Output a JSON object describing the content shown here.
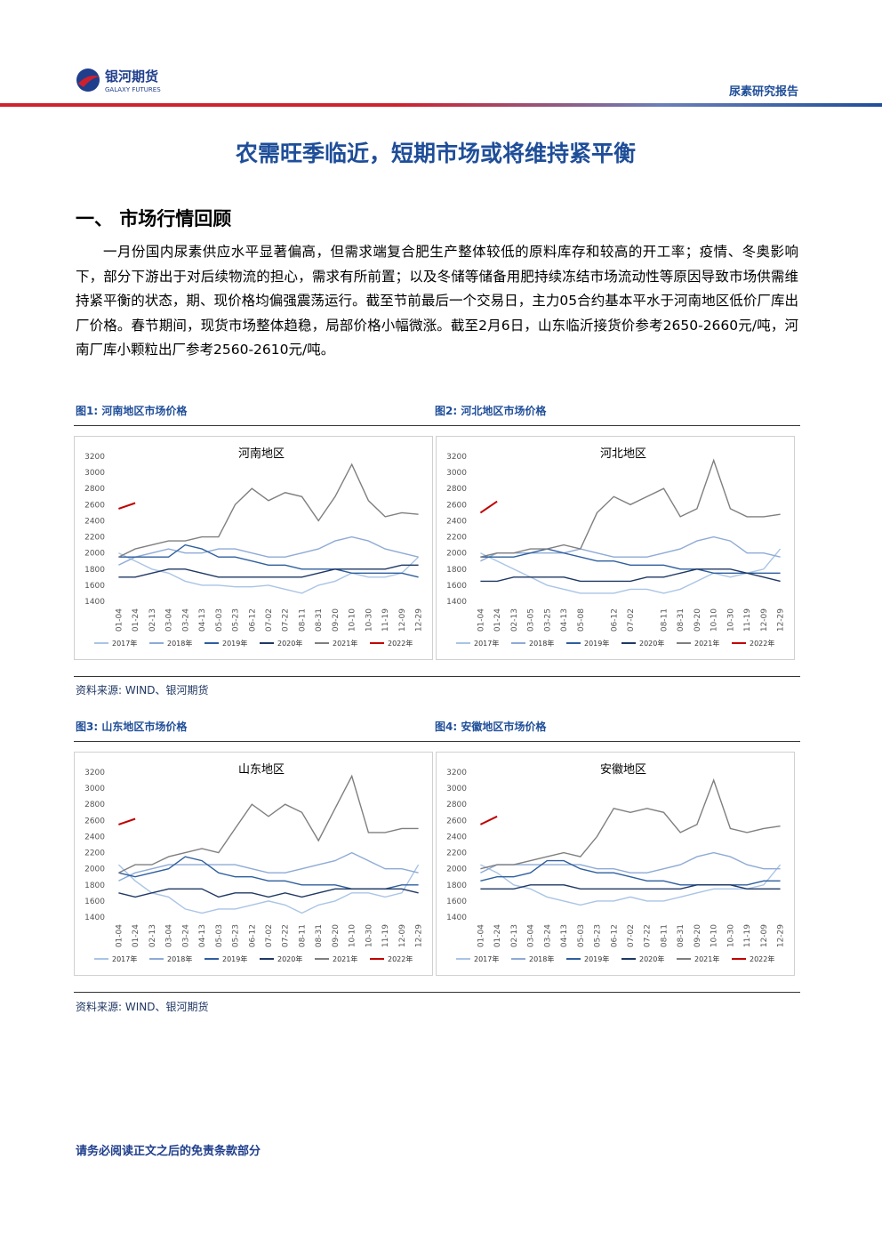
{
  "header": {
    "logo_cn": "银河期货",
    "logo_en": "GALAXY FUTURES",
    "report_type": "尿素研究报告"
  },
  "title": "农需旺季临近，短期市场或将维持紧平衡",
  "section": "一、 市场行情回顾",
  "paragraph": "一月份国内尿素供应水平显著偏高，但需求端复合肥生产整体较低的原料库存和较高的开工率；疫情、冬奥影响下，部分下游出于对后续物流的担心，需求有所前置；以及冬储等储备用肥持续冻结市场流动性等原因导致市场供需维持紧平衡的状态，期、现价格均偏强震荡运行。截至节前最后一个交易日，主力05合约基本平水于河南地区低价厂库出厂价格。春节期间，现货市场整体趋稳，局部价格小幅微涨。截至2月6日，山东临沂接货价参考2650-2660元/吨，河南厂库小颗粒出厂参考2560-2610元/吨。",
  "figure_captions": [
    "图1: 河南地区市场价格",
    "图2: 河北地区市场价格",
    "图3: 山东地区市场价格",
    "图4: 安徽地区市场价格"
  ],
  "sources": [
    "资料来源: WIND、银河期货",
    "资料来源: WIND、银河期货"
  ],
  "footer": "请务必阅读正文之后的免责条款部分",
  "chart_data": [
    {
      "type": "line",
      "title": "河南地区",
      "categories": [
        "01-04",
        "01-24",
        "02-13",
        "03-04",
        "03-24",
        "04-13",
        "05-03",
        "05-23",
        "06-12",
        "07-02",
        "07-22",
        "08-11",
        "08-31",
        "09-20",
        "10-10",
        "10-30",
        "11-19",
        "12-09",
        "12-29"
      ],
      "ylim": [
        1400,
        3200
      ],
      "yticks": [
        1400,
        1600,
        1800,
        2000,
        2200,
        2400,
        2600,
        2800,
        3000,
        3200
      ],
      "grid": false,
      "series": [
        {
          "name": "2017年",
          "color": "#a9c4e6",
          "values": [
            2000,
            1900,
            1800,
            1750,
            1650,
            1600,
            1600,
            1580,
            1580,
            1600,
            1550,
            1500,
            1600,
            1650,
            1750,
            1700,
            1700,
            1750,
            1950
          ]
        },
        {
          "name": "2018年",
          "color": "#8eaad6",
          "values": [
            1850,
            1950,
            2000,
            2050,
            2000,
            2000,
            2050,
            2050,
            2000,
            1950,
            1950,
            2000,
            2050,
            2150,
            2200,
            2150,
            2050,
            2000,
            1950
          ]
        },
        {
          "name": "2019年",
          "color": "#2e5f9e",
          "values": [
            1950,
            1950,
            1950,
            1950,
            2100,
            2050,
            1950,
            1950,
            1900,
            1850,
            1850,
            1800,
            1800,
            1800,
            1750,
            1750,
            1750,
            1750,
            1700
          ]
        },
        {
          "name": "2020年",
          "color": "#1f3864",
          "values": [
            1700,
            1700,
            1750,
            1800,
            1800,
            1750,
            1700,
            1700,
            1700,
            1700,
            1700,
            1700,
            1750,
            1800,
            1800,
            1800,
            1800,
            1850,
            1850
          ]
        },
        {
          "name": "2021年",
          "color": "#7f7f7f",
          "values": [
            1950,
            2050,
            2100,
            2150,
            2150,
            2200,
            2200,
            2600,
            2800,
            2650,
            2750,
            2700,
            2400,
            2700,
            3100,
            2650,
            2450,
            2500,
            2480
          ]
        },
        {
          "name": "2022年",
          "color": "#c00000",
          "values": [
            2550,
            2620,
            null,
            null,
            null,
            null,
            null,
            null,
            null,
            null,
            null,
            null,
            null,
            null,
            null,
            null,
            null,
            null,
            null
          ]
        }
      ]
    },
    {
      "type": "line",
      "title": "河北地区",
      "categories": [
        "01-04",
        "01-24",
        "02-13",
        "03-05",
        "03-25",
        "04-13",
        "05-08",
        null,
        "06-12",
        "07-02",
        null,
        "08-11",
        "08-31",
        "09-20",
        "10-10",
        "10-30",
        "11-19",
        "12-09",
        "12-29"
      ],
      "ylim": [
        1400,
        3200
      ],
      "yticks": [
        1400,
        1600,
        1800,
        2000,
        2200,
        2400,
        2600,
        2800,
        3000,
        3200
      ],
      "grid": false,
      "series": [
        {
          "name": "2017年",
          "color": "#a9c4e6",
          "values": [
            2000,
            1900,
            1800,
            1700,
            1600,
            1550,
            1500,
            1500,
            1500,
            1550,
            1550,
            1500,
            1550,
            1650,
            1750,
            1700,
            1750,
            1800,
            2050
          ]
        },
        {
          "name": "2018年",
          "color": "#8eaad6",
          "values": [
            1900,
            2000,
            2000,
            2000,
            2000,
            2000,
            2050,
            2000,
            1950,
            1950,
            1950,
            2000,
            2050,
            2150,
            2200,
            2150,
            2000,
            2000,
            1950
          ]
        },
        {
          "name": "2019年",
          "color": "#2e5f9e",
          "values": [
            1950,
            1950,
            1950,
            2000,
            2050,
            2000,
            1950,
            1900,
            1900,
            1850,
            1850,
            1850,
            1800,
            1800,
            1750,
            1750,
            1750,
            1750,
            1750
          ]
        },
        {
          "name": "2020年",
          "color": "#1f3864",
          "values": [
            1650,
            1650,
            1700,
            1700,
            1700,
            1700,
            1650,
            1650,
            1650,
            1650,
            1700,
            1700,
            1750,
            1800,
            1800,
            1800,
            1750,
            1700,
            1650
          ]
        },
        {
          "name": "2021年",
          "color": "#7f7f7f",
          "values": [
            1950,
            2000,
            2000,
            2050,
            2050,
            2100,
            2050,
            2500,
            2700,
            2600,
            2700,
            2800,
            2450,
            2550,
            3150,
            2550,
            2450,
            2450,
            2480
          ]
        },
        {
          "name": "2022年",
          "color": "#c00000",
          "values": [
            2500,
            2640,
            null,
            null,
            null,
            null,
            null,
            null,
            null,
            null,
            null,
            null,
            null,
            null,
            null,
            null,
            null,
            null,
            null
          ]
        }
      ]
    },
    {
      "type": "line",
      "title": "山东地区",
      "categories": [
        "01-04",
        "01-24",
        "02-13",
        "03-04",
        "03-24",
        "04-13",
        "05-03",
        "05-23",
        "06-12",
        "07-02",
        "07-22",
        "08-11",
        "08-31",
        "09-20",
        "10-10",
        "10-30",
        "11-19",
        "12-09",
        "12-29"
      ],
      "ylim": [
        1400,
        3200
      ],
      "yticks": [
        1400,
        1600,
        1800,
        2000,
        2200,
        2400,
        2600,
        2800,
        3000,
        3200
      ],
      "grid": false,
      "series": [
        {
          "name": "2017年",
          "color": "#a9c4e6",
          "values": [
            2050,
            1850,
            1700,
            1650,
            1500,
            1450,
            1500,
            1500,
            1550,
            1600,
            1550,
            1450,
            1550,
            1600,
            1700,
            1700,
            1650,
            1700,
            2050
          ]
        },
        {
          "name": "2018年",
          "color": "#8eaad6",
          "values": [
            1850,
            1950,
            2000,
            2050,
            2050,
            2050,
            2050,
            2050,
            2000,
            1950,
            1950,
            2000,
            2050,
            2100,
            2200,
            2100,
            2000,
            2000,
            1950
          ]
        },
        {
          "name": "2019年",
          "color": "#2e5f9e",
          "values": [
            1950,
            1900,
            1950,
            2000,
            2150,
            2100,
            1950,
            1900,
            1900,
            1850,
            1850,
            1800,
            1800,
            1800,
            1750,
            1750,
            1750,
            1800,
            1800
          ]
        },
        {
          "name": "2020年",
          "color": "#1f3864",
          "values": [
            1700,
            1650,
            1700,
            1750,
            1750,
            1750,
            1650,
            1700,
            1700,
            1650,
            1700,
            1650,
            1700,
            1750,
            1750,
            1750,
            1750,
            1750,
            1700
          ]
        },
        {
          "name": "2021年",
          "color": "#7f7f7f",
          "values": [
            1950,
            2050,
            2050,
            2150,
            2200,
            2250,
            2200,
            2500,
            2800,
            2650,
            2800,
            2700,
            2350,
            2750,
            3150,
            2450,
            2450,
            2500,
            2500
          ]
        },
        {
          "name": "2022年",
          "color": "#c00000",
          "values": [
            2550,
            2620,
            null,
            null,
            null,
            null,
            null,
            null,
            null,
            null,
            null,
            null,
            null,
            null,
            null,
            null,
            null,
            null,
            null
          ]
        }
      ]
    },
    {
      "type": "line",
      "title": "安徽地区",
      "categories": [
        "01-04",
        "01-24",
        "02-13",
        "03-04",
        "03-24",
        "04-13",
        "05-03",
        "05-23",
        "06-12",
        "07-02",
        "07-22",
        "08-11",
        "08-31",
        "09-20",
        "10-10",
        "10-30",
        "11-19",
        "12-09",
        "12-29"
      ],
      "ylim": [
        1400,
        3200
      ],
      "yticks": [
        1400,
        1600,
        1800,
        2000,
        2200,
        2400,
        2600,
        2800,
        3000,
        3200
      ],
      "grid": false,
      "series": [
        {
          "name": "2017年",
          "color": "#a9c4e6",
          "values": [
            2050,
            1950,
            1800,
            1750,
            1650,
            1600,
            1550,
            1600,
            1600,
            1650,
            1600,
            1600,
            1650,
            1700,
            1750,
            1750,
            1750,
            1800,
            2050
          ]
        },
        {
          "name": "2018年",
          "color": "#8eaad6",
          "values": [
            1950,
            2050,
            2050,
            2050,
            2050,
            2050,
            2050,
            2000,
            2000,
            1950,
            1950,
            2000,
            2050,
            2150,
            2200,
            2150,
            2050,
            2000,
            2000
          ]
        },
        {
          "name": "2019年",
          "color": "#2e5f9e",
          "values": [
            1850,
            1900,
            1900,
            1950,
            2100,
            2100,
            2000,
            1950,
            1950,
            1900,
            1850,
            1850,
            1800,
            1800,
            1800,
            1800,
            1800,
            1850,
            1850
          ]
        },
        {
          "name": "2020年",
          "color": "#1f3864",
          "values": [
            1750,
            1750,
            1750,
            1800,
            1800,
            1800,
            1750,
            1750,
            1750,
            1750,
            1750,
            1750,
            1750,
            1800,
            1800,
            1800,
            1750,
            1750,
            1750
          ]
        },
        {
          "name": "2021年",
          "color": "#7f7f7f",
          "values": [
            2000,
            2050,
            2050,
            2100,
            2150,
            2200,
            2150,
            2400,
            2750,
            2700,
            2750,
            2700,
            2450,
            2550,
            3100,
            2500,
            2450,
            2500,
            2530
          ]
        },
        {
          "name": "2022年",
          "color": "#c00000",
          "values": [
            2550,
            2650,
            null,
            null,
            null,
            null,
            null,
            null,
            null,
            null,
            null,
            null,
            null,
            null,
            null,
            null,
            null,
            null,
            null
          ]
        }
      ]
    }
  ]
}
